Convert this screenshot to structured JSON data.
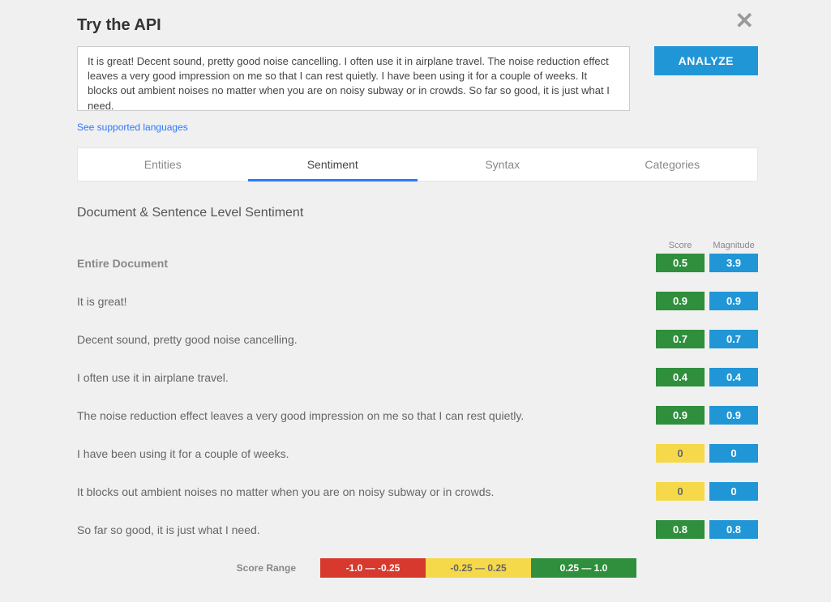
{
  "title": "Try the API",
  "close_icon": "✕",
  "input_text": "It is great! Decent sound, pretty good noise cancelling. I often use it in airplane travel. The noise reduction effect leaves a very good impression on me so that I can rest quietly. I have been using it for a couple of weeks. It blocks out ambient noises no matter when you are on noisy subway or in crowds. So far so good, it is just what I need.",
  "supported_link": "See supported languages",
  "analyze_label": "ANALYZE",
  "tabs": [
    {
      "label": "Entities",
      "active": false
    },
    {
      "label": "Sentiment",
      "active": true
    },
    {
      "label": "Syntax",
      "active": false
    },
    {
      "label": "Categories",
      "active": false
    }
  ],
  "section_title": "Document & Sentence Level Sentiment",
  "col_headers": {
    "score": "Score",
    "magnitude": "Magnitude"
  },
  "colors": {
    "positive": "#2f8f3c",
    "neutral": "#f5d94a",
    "negative": "#d7392e",
    "magnitude": "#2196d6"
  },
  "thresholds": {
    "neg_upper": -0.25,
    "pos_lower": 0.25
  },
  "rows": [
    {
      "label": "Entire Document",
      "strong": true,
      "score": "0.5",
      "score_num": 0.5,
      "magnitude": "3.9"
    },
    {
      "label": "It is great!",
      "score": "0.9",
      "score_num": 0.9,
      "magnitude": "0.9"
    },
    {
      "label": "Decent sound, pretty good noise cancelling.",
      "score": "0.7",
      "score_num": 0.7,
      "magnitude": "0.7"
    },
    {
      "label": "I often use it in airplane travel.",
      "score": "0.4",
      "score_num": 0.4,
      "magnitude": "0.4"
    },
    {
      "label": "The noise reduction effect leaves a very good impression on me so that I can rest quietly.",
      "score": "0.9",
      "score_num": 0.9,
      "magnitude": "0.9"
    },
    {
      "label": "I have been using it for a couple of weeks.",
      "score": "0",
      "score_num": 0.0,
      "magnitude": "0"
    },
    {
      "label": "It blocks out ambient noises no matter when you are on noisy subway or in crowds.",
      "score": "0",
      "score_num": 0.0,
      "magnitude": "0"
    },
    {
      "label": "So far so good, it is just what I need.",
      "score": "0.8",
      "score_num": 0.8,
      "magnitude": "0.8"
    }
  ],
  "legend": {
    "label": "Score Range",
    "ranges": [
      {
        "text": "-1.0 — -0.25",
        "kind": "negative"
      },
      {
        "text": "-0.25 — 0.25",
        "kind": "neutral"
      },
      {
        "text": "0.25 — 1.0",
        "kind": "positive"
      }
    ]
  }
}
